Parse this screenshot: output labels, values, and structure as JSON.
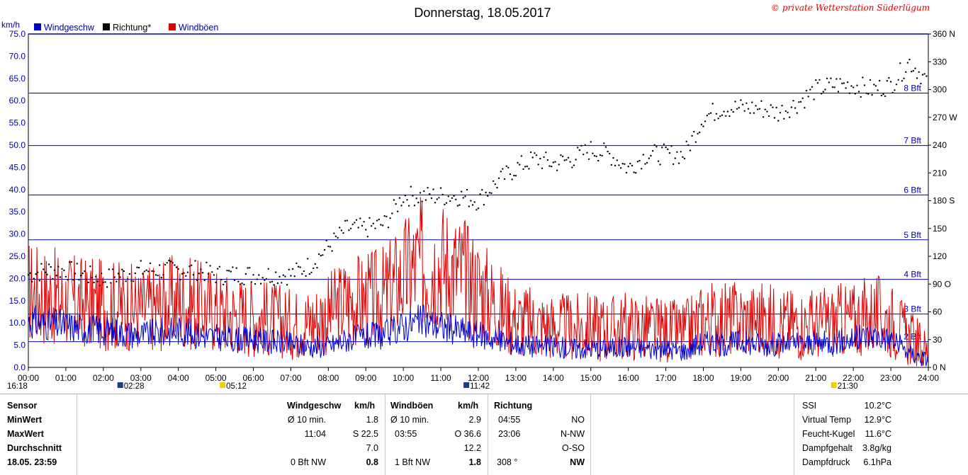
{
  "header": {
    "title": "Donnerstag, 18.05.2017",
    "copyright": "© private Wetterstation Süderlügum",
    "unit_left": "km/h"
  },
  "legend": [
    {
      "label": "Windgeschw",
      "color": "#0000cc"
    },
    {
      "label": "Richtung*",
      "color": "#000000"
    },
    {
      "label": "Windböen",
      "color": "#e00000"
    }
  ],
  "colors": {
    "wind": "#0000cc",
    "gust": "#e00000",
    "dir": "#000000",
    "bft_line": "#0000a0",
    "axis_text": "#0000a0"
  },
  "chart_data": {
    "type": "line",
    "x_label_times": [
      "00:00",
      "01:00",
      "02:00",
      "03:00",
      "04:00",
      "05:00",
      "06:00",
      "07:00",
      "08:00",
      "09:00",
      "10:00",
      "11:00",
      "12:00",
      "13:00",
      "14:00",
      "15:00",
      "16:00",
      "17:00",
      "18:00",
      "19:00",
      "20:00",
      "21:00",
      "22:00",
      "23:00",
      "24:00"
    ],
    "xlim_hours": [
      0,
      24
    ],
    "ylim_kmh": [
      0,
      75
    ],
    "y_ticks_kmh": [
      "0.0",
      "5.0",
      "10.0",
      "15.0",
      "20.0",
      "25.0",
      "30.0",
      "35.0",
      "40.0",
      "45.0",
      "50.0",
      "55.0",
      "60.0",
      "65.0",
      "70.0",
      "75.0"
    ],
    "y2_range_deg": [
      0,
      360
    ],
    "y2_ticks": [
      "0 N",
      "30",
      "60",
      "90 O",
      "120",
      "150",
      "180 S",
      "210",
      "240",
      "270 W",
      "300",
      "330",
      "360 N"
    ],
    "beaufort_lines": [
      {
        "label": "2 Bft",
        "kmh": 5.8
      },
      {
        "label": "3 Bft",
        "kmh": 12.0
      },
      {
        "label": "4 Bft",
        "kmh": 19.8
      },
      {
        "label": "5 Bft",
        "kmh": 28.7
      },
      {
        "label": "6 Bft",
        "kmh": 38.8
      },
      {
        "label": "7 Bft",
        "kmh": 49.9
      },
      {
        "label": "8 Bft",
        "kmh": 61.7
      }
    ],
    "series": [
      {
        "name": "Windgeschw",
        "x_hours": [
          0,
          0.5,
          1,
          1.5,
          2,
          2.5,
          3,
          3.5,
          4,
          4.5,
          5,
          5.5,
          6,
          6.5,
          7,
          7.5,
          8,
          8.5,
          9,
          9.5,
          10,
          10.5,
          11,
          11.5,
          12,
          12.5,
          13,
          13.5,
          14,
          14.5,
          15,
          15.5,
          16,
          16.5,
          17,
          17.5,
          18,
          18.5,
          19,
          19.5,
          20,
          20.5,
          21,
          21.5,
          22,
          22.5,
          23,
          23.5,
          24
        ],
        "values": [
          10,
          9.5,
          9,
          8.5,
          8,
          7.5,
          7,
          7.5,
          8,
          7,
          6.5,
          6,
          6,
          5.5,
          5,
          4.5,
          4.5,
          6,
          6.5,
          7,
          9,
          10,
          9,
          8,
          7,
          6,
          5,
          4.5,
          4.5,
          4,
          4,
          4,
          4.5,
          4,
          4,
          3.5,
          5.5,
          5,
          5.5,
          5,
          5,
          5,
          5,
          5.5,
          6,
          7,
          6,
          3,
          1.5
        ]
      },
      {
        "name": "Windböen",
        "x_hours": [
          0,
          0.5,
          1,
          1.5,
          2,
          2.5,
          3,
          3.5,
          4,
          4.5,
          5,
          5.5,
          6,
          6.5,
          7,
          7.5,
          8,
          8.5,
          9,
          9.5,
          10,
          10.5,
          11,
          11.5,
          12,
          12.5,
          13,
          13.5,
          14,
          14.5,
          15,
          15.5,
          16,
          16.5,
          17,
          17.5,
          18,
          18.5,
          19,
          19.5,
          20,
          20.5,
          21,
          21.5,
          22,
          22.5,
          23,
          23.5,
          24
        ],
        "values": [
          16,
          15,
          14,
          13.5,
          13,
          13,
          12,
          13,
          14,
          13,
          12,
          11,
          10.5,
          10,
          9,
          9.5,
          11,
          14,
          14,
          15,
          19,
          22,
          22,
          20,
          17,
          13,
          10,
          9,
          8.5,
          8,
          8.5,
          8,
          8.5,
          8,
          7.5,
          7,
          10,
          10,
          10,
          10,
          9.5,
          9,
          9,
          9.5,
          10,
          11,
          10,
          6,
          3
        ]
      },
      {
        "name": "Richtung*",
        "x_hours": [
          0,
          0.5,
          1,
          1.5,
          2,
          2.5,
          3,
          3.5,
          4,
          4.5,
          5,
          5.5,
          6,
          6.5,
          7,
          7.5,
          8,
          8.5,
          9,
          9.5,
          10,
          10.5,
          11,
          11.5,
          12,
          12.5,
          13,
          13.5,
          14,
          14.5,
          15,
          15.5,
          16,
          16.5,
          17,
          17.5,
          18,
          18.5,
          19,
          19.5,
          20,
          20.5,
          21,
          21.5,
          22,
          22.5,
          23,
          23.5,
          24
        ],
        "values_deg": [
          100,
          105,
          105,
          100,
          95,
          100,
          105,
          105,
          105,
          105,
          100,
          100,
          100,
          100,
          100,
          110,
          130,
          150,
          150,
          155,
          185,
          185,
          185,
          185,
          180,
          200,
          215,
          225,
          220,
          225,
          235,
          230,
          215,
          230,
          230,
          230,
          270,
          280,
          280,
          280,
          275,
          285,
          300,
          305,
          305,
          300,
          305,
          330,
          308
        ]
      }
    ]
  },
  "time_markers": [
    {
      "text": "16:18",
      "hour": 0
    },
    {
      "text": "02:28",
      "hour": 2.47
    },
    {
      "text": "05:12",
      "hour": 5.2
    },
    {
      "text": "11:42",
      "hour": 11.7
    },
    {
      "text": "21:30",
      "hour": 21.5
    }
  ],
  "panel": {
    "row_labels": [
      "Sensor",
      "MinWert",
      "MaxWert",
      "Durchschnitt",
      "18.05. 23:59"
    ],
    "windgeschw": {
      "header": "Windgeschw",
      "unit": "km/h",
      "rows": [
        {
          "a": "Ø 10 min.",
          "b": "1.8"
        },
        {
          "a": "11:04",
          "b": "S 22.5"
        },
        {
          "a": "",
          "b": "7.0"
        },
        {
          "a": "0 Bft NW",
          "b": "0.8"
        }
      ]
    },
    "windboeen": {
      "header": "Windböen",
      "unit": "km/h",
      "rows": [
        {
          "a": "Ø 10 min.",
          "b": "2.9"
        },
        {
          "a": "03:55",
          "b": "O 36.6"
        },
        {
          "a": "",
          "b": "12.2"
        },
        {
          "a": "1 Bft NW",
          "b": "1.8"
        }
      ]
    },
    "richtung": {
      "header": "Richtung",
      "rows": [
        {
          "a": "04:55",
          "b": "NO"
        },
        {
          "a": "23:06",
          "b": "N-NW"
        },
        {
          "a": "",
          "b": "O-SO"
        },
        {
          "a": "308 °",
          "b": "NW"
        }
      ]
    },
    "extra": [
      {
        "label": "SSI",
        "value": "10.2°C"
      },
      {
        "label": "Virtual Temp",
        "value": "12.9°C"
      },
      {
        "label": "Feucht-Kugel",
        "value": "11.6°C"
      },
      {
        "label": "Dampfgehalt",
        "value": "3.8g/kg"
      },
      {
        "label": "Dampfdruck",
        "value": "6.1hPa"
      }
    ]
  }
}
